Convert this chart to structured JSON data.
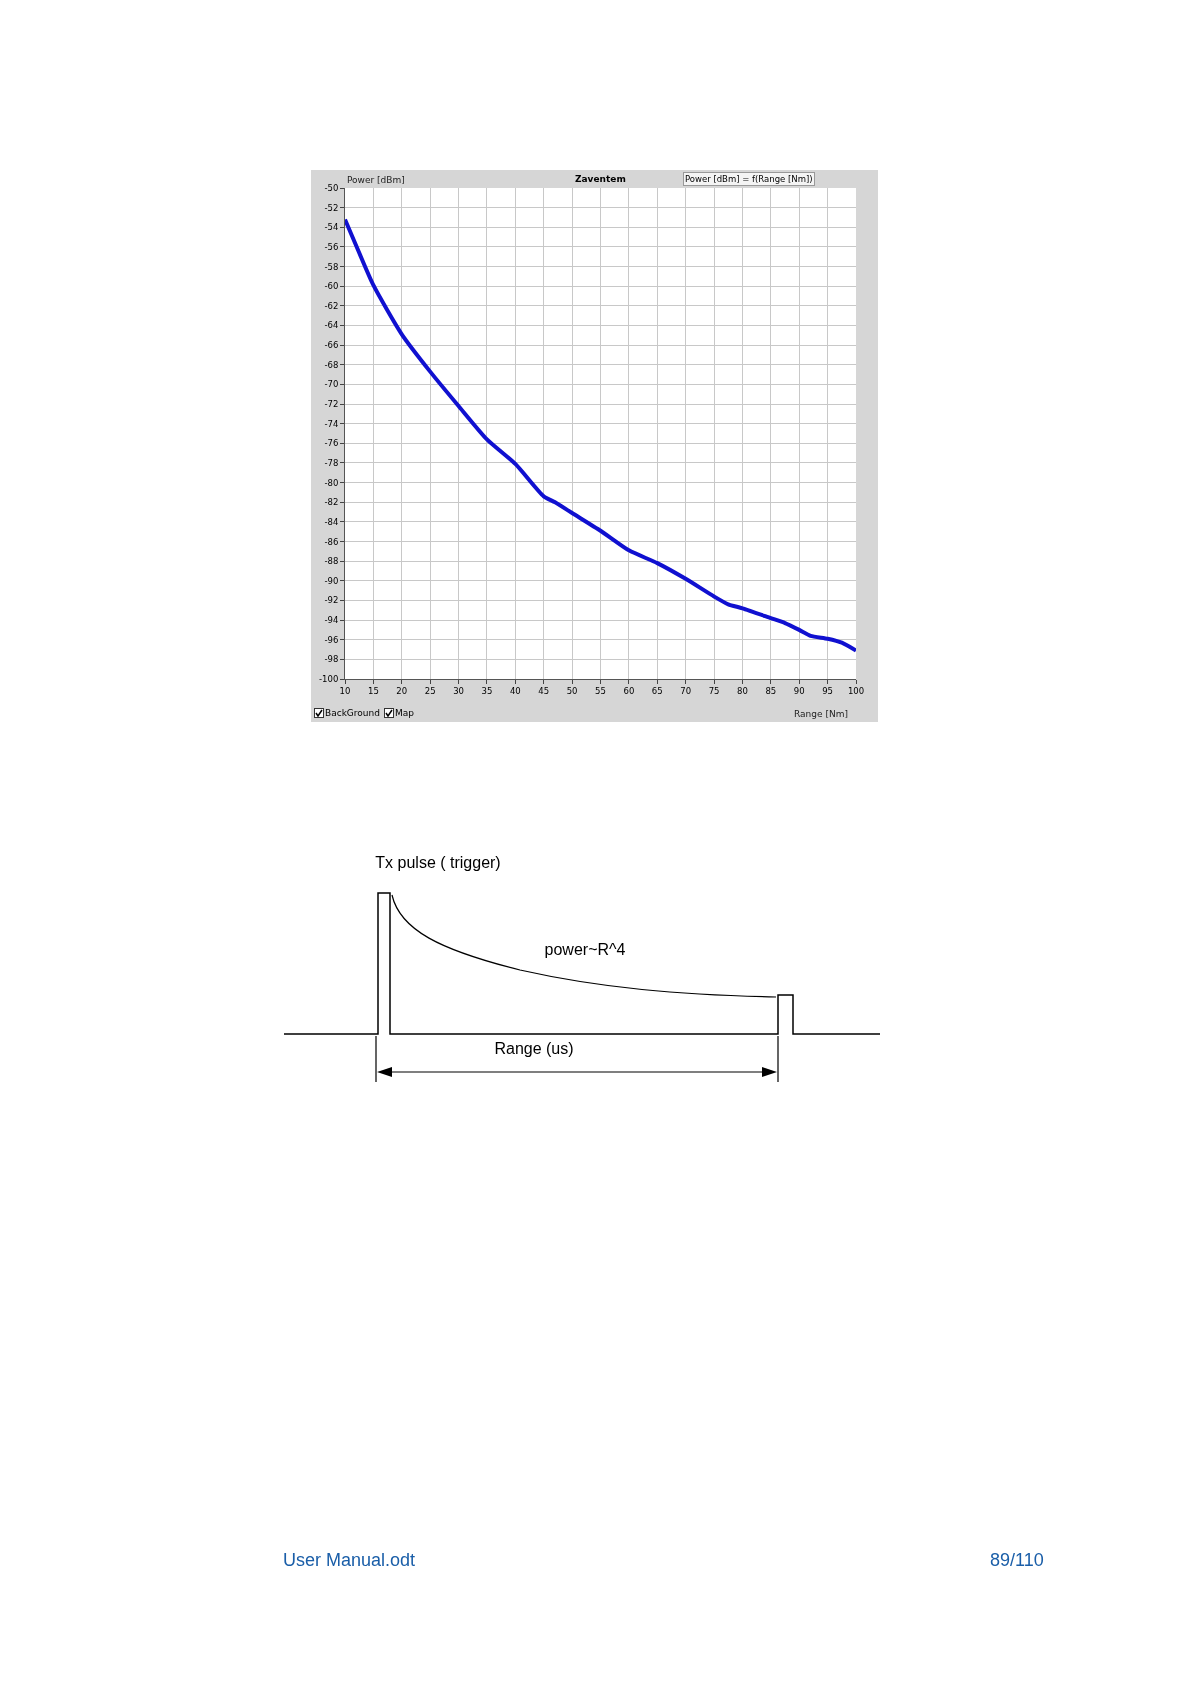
{
  "chart_data": [
    {
      "type": "line",
      "ylabel": "Power [dBm]",
      "xlabel": "Range [Nm]",
      "annotations": [
        "Zaventem",
        "Power [dBm] = f(Range [Nm])",
        "BackGround",
        "Map"
      ],
      "x": [
        10,
        12.5,
        15,
        20,
        25,
        30,
        35,
        40,
        45,
        47,
        50,
        55,
        60,
        65,
        70,
        75,
        77.5,
        80,
        85,
        87.5,
        90,
        92,
        95,
        97.5,
        100
      ],
      "series": [
        {
          "color": "#1010d0",
          "values": [
            -53.2,
            -56.6,
            -59.9,
            -64.9,
            -68.7,
            -72.2,
            -75.6,
            -78.1,
            -81.4,
            -82,
            -83.1,
            -84.9,
            -86.9,
            -88.2,
            -89.8,
            -91.6,
            -92.4,
            -92.8,
            -93.8,
            -94.3,
            -95.0,
            -95.6,
            -95.9,
            -96.3,
            -97.1
          ]
        }
      ],
      "xlim": [
        10,
        100
      ],
      "xticks": [
        10,
        15,
        20,
        25,
        30,
        35,
        40,
        45,
        50,
        55,
        60,
        65,
        70,
        75,
        80,
        85,
        90,
        95,
        100
      ],
      "ylim": [
        -100,
        -50
      ],
      "yticks": [
        -100,
        -98,
        -96,
        -94,
        -92,
        -90,
        -88,
        -86,
        -84,
        -82,
        -80,
        -78,
        -76,
        -74,
        -72,
        -70,
        -68,
        -66,
        -64,
        -62,
        -60,
        -58,
        -56,
        -54,
        -52,
        -50
      ],
      "grid": true,
      "line_style": "solid",
      "marker": "none"
    },
    {
      "type": "other",
      "annotations": [
        "Tx pulse ( trigger)",
        "power~R^4",
        "Range (us)",
        "User Manual.odt",
        "89/110"
      ]
    }
  ]
}
